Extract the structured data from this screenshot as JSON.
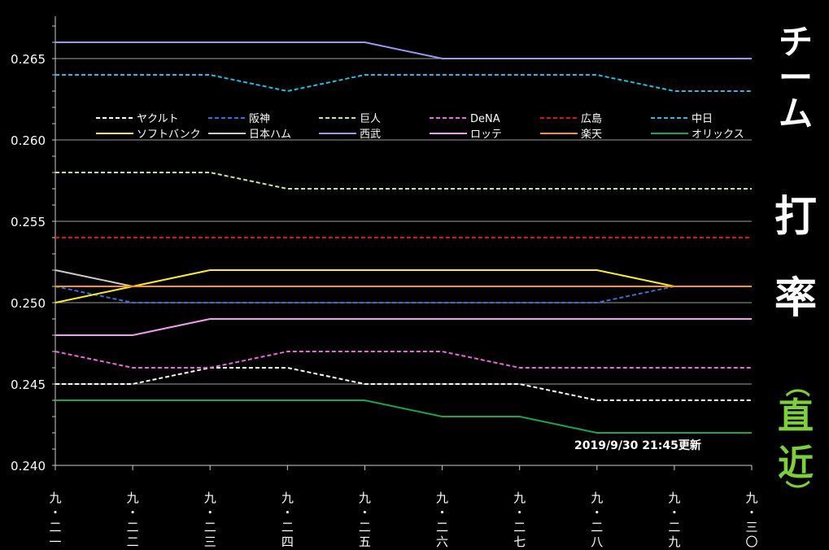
{
  "side_title": [
    "チーム",
    "打",
    "率"
  ],
  "side_subtitle": [
    "（",
    "直",
    "近",
    "）"
  ],
  "chart_data": {
    "type": "line",
    "categories": [
      [
        "九",
        "・",
        "二",
        "一"
      ],
      [
        "九",
        "・",
        "二",
        "二"
      ],
      [
        "九",
        "・",
        "二",
        "三"
      ],
      [
        "九",
        "・",
        "二",
        "四"
      ],
      [
        "九",
        "・",
        "二",
        "五"
      ],
      [
        "九",
        "・",
        "二",
        "六"
      ],
      [
        "九",
        "・",
        "二",
        "七"
      ],
      [
        "九",
        "・",
        "二",
        "八"
      ],
      [
        "九",
        "・",
        "二",
        "九"
      ],
      [
        "九",
        "・",
        "三",
        "〇"
      ]
    ],
    "ylim": [
      0.24,
      0.268
    ],
    "yticks": [
      "0.240",
      "0.245",
      "0.250",
      "0.255",
      "0.260",
      "0.265"
    ],
    "ytick_values": [
      0.24,
      0.245,
      0.25,
      0.255,
      0.26,
      0.265
    ],
    "grid": "horizontal",
    "legend_position": "top",
    "annotation": "2019/9/30  21:45更新",
    "series": [
      {
        "name": "ヤクルト",
        "color": "#ffffff",
        "dash": true,
        "values": [
          0.245,
          0.245,
          0.246,
          0.246,
          0.245,
          0.245,
          0.245,
          0.244,
          0.244,
          0.244
        ]
      },
      {
        "name": "阪神",
        "color": "#3b6fd9",
        "dash": true,
        "values": [
          0.251,
          0.25,
          0.25,
          0.25,
          0.25,
          0.25,
          0.25,
          0.25,
          0.251,
          0.251
        ]
      },
      {
        "name": "巨人",
        "color": "#c8e89a",
        "dash": true,
        "values": [
          0.258,
          0.258,
          0.258,
          0.257,
          0.257,
          0.257,
          0.257,
          0.257,
          0.257,
          0.257
        ]
      },
      {
        "name": "DeNA",
        "color": "#ee66e0",
        "dash": true,
        "values": [
          0.247,
          0.246,
          0.246,
          0.247,
          0.247,
          0.247,
          0.246,
          0.246,
          0.246,
          0.246
        ]
      },
      {
        "name": "広島",
        "color": "#e01010",
        "dash": true,
        "values": [
          0.254,
          0.254,
          0.254,
          0.254,
          0.254,
          0.254,
          0.254,
          0.254,
          0.254,
          0.254
        ]
      },
      {
        "name": "中日",
        "color": "#22bde8",
        "dash": true,
        "values": [
          0.264,
          0.264,
          0.264,
          0.263,
          0.264,
          0.264,
          0.264,
          0.264,
          0.263,
          0.263
        ]
      },
      {
        "name": "ソフトバンク",
        "color": "#ffee22",
        "dash": false,
        "values": [
          0.25,
          0.251,
          0.252,
          0.252,
          0.252,
          0.252,
          0.252,
          0.252,
          0.251,
          0.251
        ]
      },
      {
        "name": "日本ハム",
        "color": "#cccccc",
        "dash": false,
        "values": [
          0.252,
          0.251,
          0.251,
          0.251,
          0.251,
          0.251,
          0.251,
          0.251,
          0.251,
          0.251
        ]
      },
      {
        "name": "西武",
        "color": "#9a9af0",
        "dash": false,
        "values": [
          0.266,
          0.266,
          0.266,
          0.266,
          0.266,
          0.265,
          0.265,
          0.265,
          0.265,
          0.265
        ]
      },
      {
        "name": "ロッテ",
        "color": "#f29cf0",
        "dash": false,
        "values": [
          0.248,
          0.248,
          0.249,
          0.249,
          0.249,
          0.249,
          0.249,
          0.249,
          0.249,
          0.249
        ]
      },
      {
        "name": "楽天",
        "color": "#f7941d",
        "dash": false,
        "values": [
          0.251,
          0.251,
          0.251,
          0.251,
          0.251,
          0.251,
          0.251,
          0.251,
          0.251,
          0.251
        ]
      },
      {
        "name": "オリックス",
        "color": "#1aa64a",
        "dash": false,
        "values": [
          0.244,
          0.244,
          0.244,
          0.244,
          0.244,
          0.243,
          0.243,
          0.242,
          0.242,
          0.242
        ]
      }
    ]
  }
}
